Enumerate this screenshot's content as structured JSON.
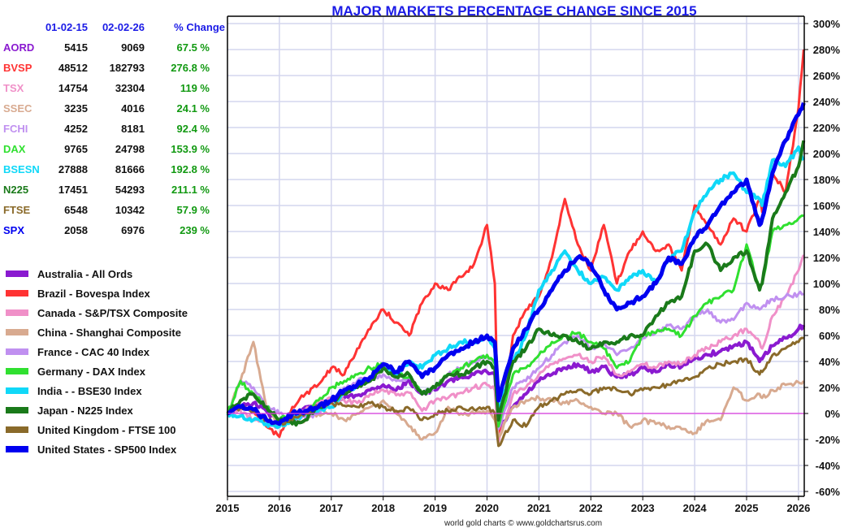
{
  "chart_data": {
    "type": "line",
    "title": "MAJOR MARKETS PERCENTAGE CHANGE SINCE 2015",
    "credit": "world gold charts © www.goldchartsrus.com",
    "xlabel": "",
    "ylabel": "",
    "xlim": [
      2015,
      2026.1
    ],
    "ylim": [
      -62,
      306
    ],
    "grid": true,
    "x_ticks": [
      "2015",
      "2016",
      "2017",
      "2018",
      "2019",
      "2020",
      "2021",
      "2022",
      "2023",
      "2024",
      "2025",
      "2026"
    ],
    "y_ticks": [
      "300%",
      "280%",
      "260%",
      "240%",
      "220%",
      "200%",
      "180%",
      "160%",
      "140%",
      "120%",
      "100%",
      "80%",
      "60%",
      "40%",
      "20%",
      "0%",
      "-20%",
      "-40%",
      "-60%"
    ],
    "y_tick_values": [
      300,
      280,
      260,
      240,
      220,
      200,
      180,
      160,
      140,
      120,
      100,
      80,
      60,
      40,
      20,
      0,
      -20,
      -40,
      -60
    ],
    "zero_line_color": "#e040e0",
    "table": {
      "headers": [
        "01-02-15",
        "02-02-26",
        "% Change"
      ],
      "rows": [
        {
          "symbol": "AORD",
          "start": "5415",
          "end": "9069",
          "change": "67.5 %",
          "color": "#8a1ad0"
        },
        {
          "symbol": "BVSP",
          "start": "48512",
          "end": "182793",
          "change": "276.8 %",
          "color": "#ff3333"
        },
        {
          "symbol": "TSX",
          "start": "14754",
          "end": "32304",
          "change": "119 %",
          "color": "#f090c8"
        },
        {
          "symbol": "SSEC",
          "start": "3235",
          "end": "4016",
          "change": "24.1 %",
          "color": "#d8aa90"
        },
        {
          "symbol": "FCHI",
          "start": "4252",
          "end": "8181",
          "change": "92.4 %",
          "color": "#c090f0"
        },
        {
          "symbol": "DAX",
          "start": "9765",
          "end": "24798",
          "change": "153.9 %",
          "color": "#30e030"
        },
        {
          "symbol": "BSESN",
          "start": "27888",
          "end": "81666",
          "change": "192.8 %",
          "color": "#10d8f8"
        },
        {
          "symbol": "N225",
          "start": "17451",
          "end": "54293",
          "change": "211.1 %",
          "color": "#1a7a1a"
        },
        {
          "symbol": "FTSE",
          "start": "6548",
          "end": "10342",
          "change": "57.9 %",
          "color": "#8a6a2a"
        },
        {
          "symbol": "SPX",
          "start": "2058",
          "end": "6976",
          "change": "239 %",
          "color": "#0000f0"
        }
      ]
    },
    "legend_position": "left",
    "x": [
      2015.0,
      2015.25,
      2015.5,
      2015.75,
      2016.0,
      2016.25,
      2016.5,
      2016.75,
      2017.0,
      2017.25,
      2017.5,
      2017.75,
      2018.0,
      2018.25,
      2018.5,
      2018.75,
      2019.0,
      2019.25,
      2019.5,
      2019.75,
      2020.0,
      2020.15,
      2020.22,
      2020.5,
      2020.75,
      2021.0,
      2021.25,
      2021.5,
      2021.75,
      2022.0,
      2022.25,
      2022.5,
      2022.75,
      2023.0,
      2023.25,
      2023.5,
      2023.75,
      2024.0,
      2024.25,
      2024.5,
      2024.75,
      2025.0,
      2025.25,
      2025.3,
      2025.5,
      2025.75,
      2026.0,
      2026.1
    ],
    "series": [
      {
        "name": "Australia - All Ords",
        "color": "#8a1ad0",
        "width": 4,
        "values": [
          0,
          5,
          8,
          2,
          -8,
          -3,
          5,
          4,
          10,
          12,
          14,
          18,
          22,
          18,
          25,
          15,
          18,
          25,
          28,
          30,
          32,
          30,
          -15,
          5,
          15,
          25,
          30,
          35,
          38,
          32,
          36,
          28,
          30,
          35,
          32,
          38,
          36,
          42,
          45,
          48,
          52,
          55,
          40,
          42,
          52,
          58,
          65,
          68
        ]
      },
      {
        "name": "Brazil - Bovespa Index",
        "color": "#ff3333",
        "width": 3,
        "values": [
          0,
          5,
          2,
          -10,
          -18,
          5,
          15,
          22,
          35,
          30,
          50,
          65,
          80,
          70,
          60,
          85,
          100,
          95,
          105,
          115,
          145,
          100,
          -20,
          60,
          80,
          90,
          120,
          165,
          130,
          110,
          145,
          100,
          125,
          140,
          125,
          130,
          110,
          160,
          145,
          130,
          150,
          140,
          165,
          155,
          185,
          170,
          235,
          280
        ]
      },
      {
        "name": "Canada - S&P/TSX Composite",
        "color": "#f090c8",
        "width": 3,
        "values": [
          0,
          2,
          -5,
          -8,
          -10,
          0,
          3,
          8,
          12,
          10,
          8,
          15,
          18,
          14,
          16,
          2,
          10,
          12,
          16,
          20,
          22,
          18,
          -22,
          15,
          20,
          30,
          38,
          42,
          45,
          40,
          44,
          30,
          32,
          38,
          35,
          40,
          38,
          45,
          50,
          55,
          60,
          65,
          55,
          50,
          75,
          90,
          110,
          122
        ]
      },
      {
        "name": "China - Shanghai Composite",
        "color": "#d8aa90",
        "width": 3,
        "values": [
          0,
          25,
          55,
          5,
          -10,
          -5,
          -5,
          0,
          0,
          -5,
          0,
          5,
          10,
          0,
          -10,
          -20,
          -15,
          5,
          0,
          0,
          2,
          -5,
          -18,
          5,
          10,
          12,
          10,
          8,
          10,
          5,
          0,
          0,
          -10,
          -5,
          -8,
          -10,
          -12,
          -15,
          -5,
          -5,
          20,
          10,
          15,
          12,
          18,
          22,
          24,
          25
        ]
      },
      {
        "name": "France - CAC 40 Index",
        "color": "#c090f0",
        "width": 3,
        "values": [
          0,
          25,
          20,
          5,
          0,
          -5,
          -3,
          0,
          10,
          20,
          25,
          27,
          30,
          25,
          28,
          15,
          20,
          30,
          35,
          40,
          45,
          40,
          -12,
          20,
          25,
          35,
          45,
          55,
          60,
          50,
          55,
          45,
          50,
          58,
          62,
          68,
          65,
          75,
          80,
          70,
          72,
          85,
          80,
          82,
          88,
          90,
          92,
          92
        ]
      },
      {
        "name": "Germany - DAX Index",
        "color": "#30e030",
        "width": 3,
        "values": [
          0,
          25,
          15,
          5,
          -5,
          0,
          0,
          10,
          20,
          25,
          30,
          35,
          38,
          30,
          28,
          15,
          20,
          30,
          35,
          40,
          45,
          38,
          -10,
          30,
          35,
          45,
          55,
          60,
          62,
          55,
          50,
          35,
          40,
          60,
          62,
          65,
          60,
          75,
          85,
          90,
          95,
          130,
          95,
          100,
          140,
          145,
          150,
          152
        ]
      },
      {
        "name": "India -  - BSE30 Index",
        "color": "#10d8f8",
        "width": 4,
        "values": [
          0,
          -2,
          -5,
          -8,
          -10,
          -5,
          0,
          2,
          5,
          15,
          22,
          28,
          35,
          30,
          40,
          35,
          45,
          50,
          55,
          55,
          60,
          50,
          0,
          40,
          60,
          95,
          110,
          125,
          110,
          100,
          105,
          95,
          105,
          110,
          100,
          120,
          125,
          155,
          170,
          180,
          185,
          170,
          165,
          160,
          195,
          190,
          205,
          195
        ]
      },
      {
        "name": "Japan - N225 Index",
        "color": "#1a7a1a",
        "width": 4,
        "values": [
          0,
          10,
          15,
          5,
          -5,
          -8,
          -5,
          5,
          10,
          15,
          20,
          25,
          35,
          28,
          30,
          15,
          20,
          30,
          30,
          35,
          40,
          35,
          -5,
          40,
          50,
          65,
          60,
          60,
          55,
          50,
          55,
          55,
          60,
          60,
          75,
          85,
          90,
          125,
          130,
          110,
          120,
          125,
          95,
          100,
          150,
          170,
          190,
          210
        ]
      },
      {
        "name": "United Kingdom - FTSE 100",
        "color": "#8a6a2a",
        "width": 3,
        "values": [
          0,
          5,
          2,
          -5,
          -8,
          -5,
          0,
          5,
          8,
          6,
          5,
          8,
          5,
          2,
          4,
          -5,
          0,
          2,
          5,
          3,
          5,
          0,
          -25,
          -5,
          -10,
          5,
          10,
          15,
          18,
          15,
          20,
          18,
          15,
          18,
          20,
          22,
          25,
          28,
          35,
          38,
          40,
          42,
          30,
          32,
          45,
          50,
          55,
          58
        ]
      },
      {
        "name": "United States - SP500 Index",
        "color": "#0000f0",
        "width": 5,
        "values": [
          0,
          5,
          3,
          -5,
          -8,
          0,
          2,
          5,
          10,
          18,
          22,
          28,
          38,
          32,
          40,
          28,
          35,
          45,
          50,
          55,
          60,
          55,
          10,
          50,
          65,
          80,
          95,
          110,
          120,
          115,
          95,
          80,
          85,
          90,
          100,
          120,
          115,
          135,
          145,
          160,
          170,
          180,
          145,
          150,
          185,
          210,
          230,
          239
        ]
      }
    ]
  }
}
